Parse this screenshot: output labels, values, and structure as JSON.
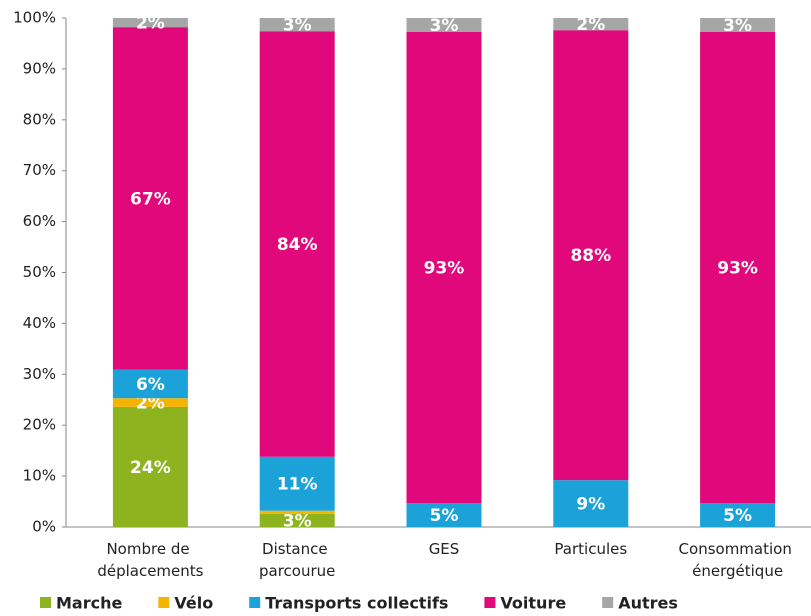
{
  "chart_data": {
    "type": "stacked_bar",
    "categories": [
      "Nombre de déplacements",
      "Distance parcourue",
      "GES",
      "Particules",
      "Consommation énergétique"
    ],
    "series": [
      {
        "name": "Marche",
        "color": "#8db41f",
        "values": [
          23.6,
          2.6,
          0,
          0,
          0
        ],
        "value_labels": [
          "24%",
          "3%",
          null,
          null,
          null
        ]
      },
      {
        "name": "Vélo",
        "color": "#f4b400",
        "values": [
          1.7,
          0.6,
          0,
          0,
          0
        ],
        "value_labels": [
          "2%",
          null,
          null,
          null,
          null
        ]
      },
      {
        "name": "Transports collectifs",
        "color": "#1ba3d9",
        "values": [
          5.6,
          10.6,
          4.7,
          9.2,
          4.7
        ],
        "value_labels": [
          "6%",
          "11%",
          "5%",
          "9%",
          "5%"
        ]
      },
      {
        "name": "Voiture",
        "color": "#e0087a",
        "values": [
          67.3,
          83.6,
          92.6,
          88.4,
          92.6
        ],
        "value_labels": [
          "67%",
          "84%",
          "93%",
          "88%",
          "93%"
        ]
      },
      {
        "name": "Autres",
        "color": "#a6a6a6",
        "values": [
          1.8,
          2.6,
          2.7,
          2.4,
          2.7
        ],
        "value_labels": [
          "2%",
          "3%",
          "3%",
          "2%",
          "3%"
        ]
      }
    ],
    "ylim": [
      0,
      100
    ],
    "yticks": [
      {
        "value": 0,
        "label": "0%"
      },
      {
        "value": 10,
        "label": "10%"
      },
      {
        "value": 20,
        "label": "20%"
      },
      {
        "value": 30,
        "label": "30%"
      },
      {
        "value": 40,
        "label": "40%"
      },
      {
        "value": 50,
        "label": "50%"
      },
      {
        "value": 60,
        "label": "60%"
      },
      {
        "value": 70,
        "label": "70%"
      },
      {
        "value": 80,
        "label": "80%"
      },
      {
        "value": 90,
        "label": "90%"
      },
      {
        "value": 100,
        "label": "100%"
      }
    ],
    "grid": false
  }
}
